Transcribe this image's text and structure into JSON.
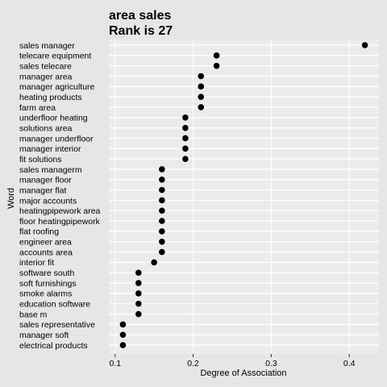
{
  "chart_data": {
    "type": "scatter",
    "title": "area sales",
    "subtitle": "Rank is 27",
    "xlabel": "Degree of Association",
    "ylabel": "Word",
    "xlim": [
      0.092,
      0.438
    ],
    "xticks": [
      0.1,
      0.2,
      0.3,
      0.4
    ],
    "xtick_labels": [
      "0.1",
      "0.2",
      "0.3",
      "0.4"
    ],
    "grid": true,
    "categories": [
      "sales manager",
      "telecare equipment",
      "sales telecare",
      "manager area",
      "manager agriculture",
      "heating products",
      "farm area",
      "underfloor heating",
      "solutions area",
      "manager underfloor",
      "manager interior",
      "fit solutions",
      "sales managerm",
      "manager floor",
      "manager flat",
      "major accounts",
      "heatingpipework area",
      "floor heatingpipework",
      "flat roofing",
      "engineer area",
      "accounts area",
      "interior fit",
      "software south",
      "soft furnishings",
      "smoke alarms",
      "education software",
      "base m",
      "sales representative",
      "manager soft",
      "electrical products"
    ],
    "values": [
      0.42,
      0.23,
      0.23,
      0.21,
      0.21,
      0.21,
      0.21,
      0.19,
      0.19,
      0.19,
      0.19,
      0.19,
      0.16,
      0.16,
      0.16,
      0.16,
      0.16,
      0.16,
      0.16,
      0.16,
      0.16,
      0.15,
      0.13,
      0.13,
      0.13,
      0.13,
      0.13,
      0.11,
      0.11,
      0.11
    ],
    "colors": {
      "background": "#e6e6e6",
      "panel": "#ebebeb",
      "gridline": "#ffffff",
      "point": "#000000"
    }
  }
}
